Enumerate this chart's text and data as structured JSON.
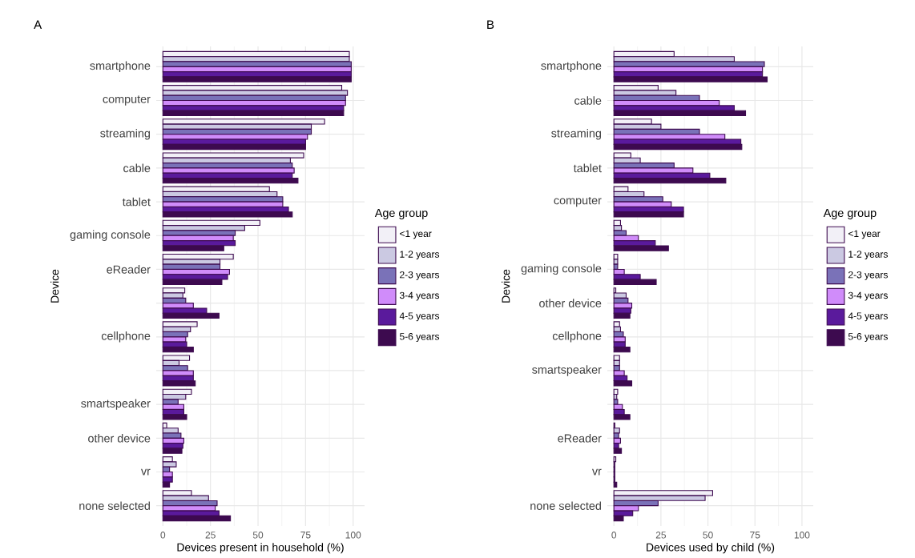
{
  "chart_data": [
    {
      "type": "bar",
      "orientation": "horizontal",
      "title": "A",
      "xlabel": "Devices present in household (%)",
      "ylabel": "Device",
      "legend_title": "Age group",
      "categories": [
        "smartphone",
        "computer",
        "streaming",
        "cable",
        "tablet",
        "gaming console",
        "eReader",
        null,
        "cellphone",
        null,
        "smartspeaker",
        "other device",
        "vr",
        "none selected"
      ],
      "series": [
        {
          "name": "<1 year",
          "color": "#f2f0f7",
          "values": [
            98,
            94,
            85,
            74,
            56,
            51,
            37,
            11.5,
            18,
            14,
            15,
            2,
            5,
            15
          ]
        },
        {
          "name": "1-2 years",
          "color": "#cbc9e2",
          "values": [
            98,
            97,
            78,
            67,
            60,
            43,
            30,
            10.5,
            14.5,
            8.5,
            12,
            8,
            7,
            24
          ]
        },
        {
          "name": "2-3 years",
          "color": "#7a72b8",
          "values": [
            99,
            96,
            78,
            68,
            63,
            38,
            30,
            12,
            13,
            13,
            8,
            9.5,
            3.5,
            28.5
          ]
        },
        {
          "name": "3-4 years",
          "color": "#d08cfa",
          "values": [
            99,
            96,
            76,
            69,
            63,
            37,
            35,
            16,
            12,
            16,
            11,
            11,
            5,
            27.5
          ]
        },
        {
          "name": "4-5 years",
          "color": "#5a1a9c",
          "values": [
            99,
            95,
            75,
            68,
            66,
            38,
            34,
            23,
            12.5,
            16,
            11,
            10.5,
            5,
            29.5
          ]
        },
        {
          "name": "5-6 years",
          "color": "#3d0a4f",
          "values": [
            99,
            95,
            75,
            71,
            68,
            32,
            31,
            29.5,
            16,
            17,
            12.5,
            10,
            3.5,
            35.5
          ]
        }
      ],
      "xlim": [
        -3.5,
        106
      ],
      "xticks": [
        0,
        25,
        50,
        75,
        100
      ],
      "grid": true,
      "legend": "right"
    },
    {
      "type": "bar",
      "orientation": "horizontal",
      "title": "B",
      "xlabel": "Devices used by child (%)",
      "ylabel": "Device",
      "legend_title": "Age group",
      "categories": [
        "smartphone",
        "cable",
        "streaming",
        "tablet",
        "computer",
        null,
        "gaming console",
        "other device",
        "cellphone",
        "smartspeaker",
        null,
        "eReader",
        "vr",
        "none selected"
      ],
      "series": [
        {
          "name": "<1 year",
          "color": "#f2f0f7",
          "values": [
            32,
            23.5,
            20,
            9,
            7.5,
            3.5,
            2,
            1,
            3,
            3,
            2,
            0.5,
            1,
            52.5
          ]
        },
        {
          "name": "1-2 years",
          "color": "#cbc9e2",
          "values": [
            64,
            33,
            25,
            14,
            16,
            4,
            2,
            6.5,
            3.5,
            3,
            1.5,
            3,
            0.5,
            48.5
          ]
        },
        {
          "name": "2-3 years",
          "color": "#7a72b8",
          "values": [
            80,
            45.5,
            45.5,
            32,
            26,
            6.5,
            2,
            7.5,
            5,
            3,
            2,
            2.5,
            0.5,
            23.5
          ]
        },
        {
          "name": "3-4 years",
          "color": "#d08cfa",
          "values": [
            79,
            56,
            59,
            42,
            30.5,
            13,
            5.5,
            9.5,
            6,
            5.5,
            4.5,
            3.5,
            0.5,
            13
          ]
        },
        {
          "name": "4-5 years",
          "color": "#5a1a9c",
          "values": [
            79,
            64,
            67.5,
            51,
            37,
            22,
            14,
            9,
            6,
            7,
            5.5,
            2.5,
            0.5,
            10
          ]
        },
        {
          "name": "5-6 years",
          "color": "#3d0a4f",
          "values": [
            81.5,
            70,
            68,
            59.5,
            37,
            29,
            22.5,
            8.5,
            8.5,
            9.5,
            8.5,
            4,
            1.5,
            5
          ]
        }
      ],
      "xlim": [
        -3.5,
        106
      ],
      "xticks": [
        0,
        25,
        50,
        75,
        100
      ],
      "grid": true,
      "legend": "right"
    }
  ]
}
